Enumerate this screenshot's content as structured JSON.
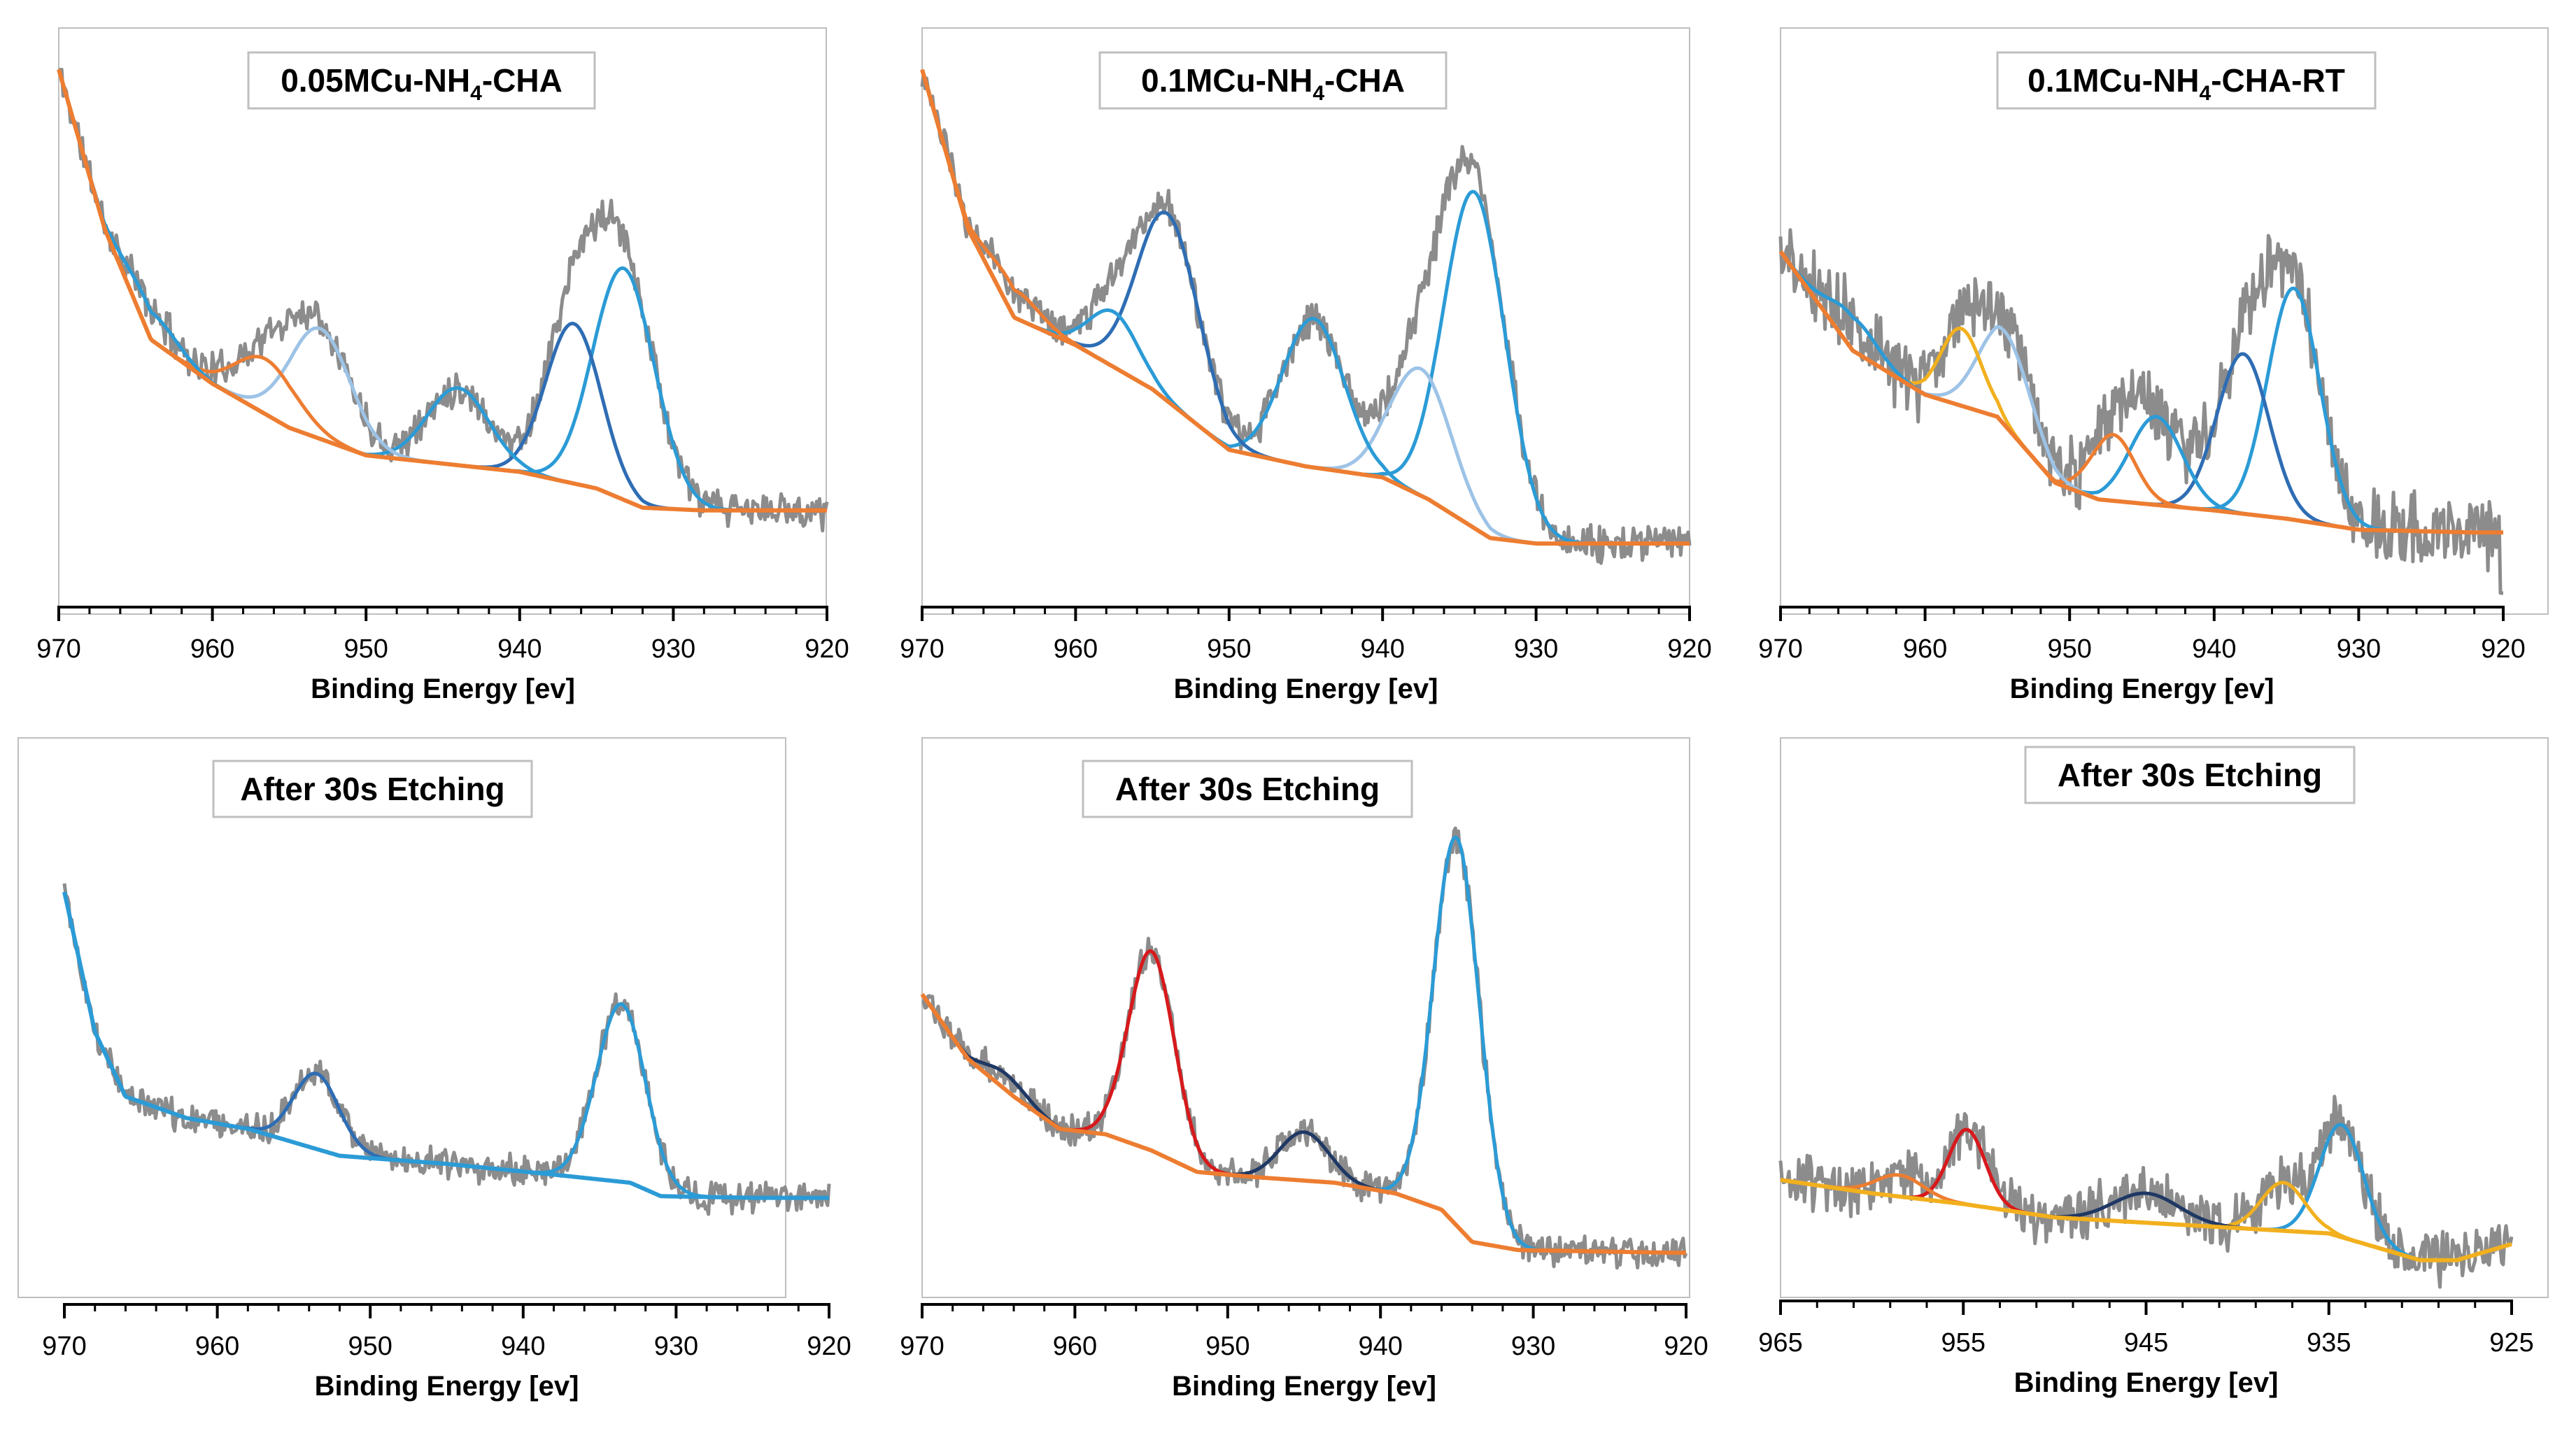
{
  "figure": {
    "xlabel": "Binding Energy [ev]",
    "colors": {
      "raw": "#8c8c8c",
      "background": "#ed7d31",
      "blue_dark": "#2e6db4",
      "blue_mid": "#2b9bd6",
      "blue_light": "#9dc3e6",
      "navy": "#1f3864",
      "orange": "#ed7d31",
      "yellow": "#f2b01e",
      "red": "#d7191c",
      "axis": "#000000",
      "frame": "#bfbfbf"
    }
  },
  "chart_data": [
    {
      "id": "p1",
      "type": "line",
      "title": "0.05MCu-NH4-CHA",
      "title_main": "0.05MCu-NH",
      "title_sub": "4",
      "title_tail": "-CHA",
      "xlabel": "Binding Energy [ev]",
      "xlim": [
        970,
        920
      ],
      "ticks": [
        970,
        960,
        950,
        940,
        930,
        920
      ],
      "ylim": [
        0,
        1
      ],
      "background": {
        "color": "background",
        "points": [
          [
            970,
            0.95
          ],
          [
            967,
            0.66
          ],
          [
            964,
            0.46
          ],
          [
            960,
            0.38
          ],
          [
            955,
            0.3
          ],
          [
            950,
            0.25
          ],
          [
            945,
            0.235
          ],
          [
            940,
            0.22
          ],
          [
            935,
            0.19
          ],
          [
            932,
            0.155
          ],
          [
            928,
            0.15
          ],
          [
            920,
            0.15
          ]
        ]
      },
      "peaks": [
        {
          "center": 933.2,
          "height": 0.42,
          "width": 2.0,
          "color": "blue_mid"
        },
        {
          "center": 936.5,
          "height": 0.29,
          "width": 1.8,
          "color": "blue_dark"
        },
        {
          "center": 944.0,
          "height": 0.14,
          "width": 2.0,
          "color": "blue_mid"
        },
        {
          "center": 953.0,
          "height": 0.2,
          "width": 2.0,
          "color": "blue_light"
        },
        {
          "center": 956.5,
          "height": 0.1,
          "width": 2.0,
          "color": "orange"
        },
        {
          "center": 964.0,
          "height": 0.05,
          "width": 1.6,
          "color": "blue_mid"
        }
      ],
      "envelope_color": "orange",
      "noise": 0.025,
      "seed": 11
    },
    {
      "id": "p2",
      "type": "line",
      "title": "0.1MCu-NH4-CHA",
      "title_main": "0.1MCu-NH",
      "title_sub": "4",
      "title_tail": "-CHA",
      "xlabel": "Binding Energy [ev]",
      "xlim": [
        970,
        920
      ],
      "ticks": [
        970,
        960,
        950,
        940,
        930,
        920
      ],
      "ylim": [
        0,
        1
      ],
      "background": {
        "color": "background",
        "points": [
          [
            970,
            0.95
          ],
          [
            967,
            0.66
          ],
          [
            964,
            0.5
          ],
          [
            960,
            0.45
          ],
          [
            955,
            0.37
          ],
          [
            950,
            0.26
          ],
          [
            945,
            0.23
          ],
          [
            940,
            0.21
          ],
          [
            937,
            0.17
          ],
          [
            933,
            0.1
          ],
          [
            930,
            0.09
          ],
          [
            920,
            0.09
          ]
        ]
      },
      "peaks": [
        {
          "center": 934.0,
          "height": 0.61,
          "width": 2.0,
          "color": "blue_mid"
        },
        {
          "center": 937.5,
          "height": 0.23,
          "width": 2.0,
          "color": "blue_light"
        },
        {
          "center": 944.5,
          "height": 0.27,
          "width": 2.0,
          "color": "blue_mid"
        },
        {
          "center": 954.0,
          "height": 0.34,
          "width": 2.0,
          "color": "blue_dark"
        },
        {
          "center": 957.5,
          "height": 0.1,
          "width": 1.6,
          "color": "blue_mid"
        },
        {
          "center": 964.0,
          "height": 0.05,
          "width": 1.6,
          "color": "orange"
        }
      ],
      "envelope_color": "orange",
      "noise": 0.025,
      "seed": 23
    },
    {
      "id": "p3",
      "type": "line",
      "title": "0.1MCu-NH4-CHA-RT",
      "title_main": "0.1MCu-NH",
      "title_sub": "4",
      "title_tail": "-CHA-RT",
      "xlabel": "Binding Energy [ev]",
      "xlim": [
        970,
        920
      ],
      "ticks": [
        970,
        960,
        950,
        940,
        930,
        920
      ],
      "ylim": [
        0,
        1
      ],
      "background": {
        "color": "background",
        "points": [
          [
            970,
            0.62
          ],
          [
            965,
            0.44
          ],
          [
            960,
            0.36
          ],
          [
            955,
            0.32
          ],
          [
            951,
            0.2
          ],
          [
            948,
            0.17
          ],
          [
            940,
            0.15
          ],
          [
            935,
            0.135
          ],
          [
            930,
            0.115
          ],
          [
            922,
            0.11
          ]
        ]
      },
      "peaks": [
        {
          "center": 934.5,
          "height": 0.42,
          "width": 1.8,
          "color": "blue_mid"
        },
        {
          "center": 938.0,
          "height": 0.29,
          "width": 1.8,
          "color": "blue_dark"
        },
        {
          "center": 944.0,
          "height": 0.16,
          "width": 1.8,
          "color": "blue_mid"
        },
        {
          "center": 947.0,
          "height": 0.12,
          "width": 1.5,
          "color": "orange"
        },
        {
          "center": 954.5,
          "height": 0.17,
          "width": 1.8,
          "color": "blue_light"
        },
        {
          "center": 957.5,
          "height": 0.14,
          "width": 1.4,
          "color": "yellow"
        },
        {
          "center": 965.0,
          "height": 0.06,
          "width": 1.6,
          "color": "blue_mid"
        }
      ],
      "envelope_color": "yellow",
      "noise": 0.05,
      "seed": 37,
      "end_drop": true
    },
    {
      "id": "p4",
      "type": "line",
      "title": "After 30s Etching",
      "xlabel": "Binding Energy [ev]",
      "xlim": [
        970,
        920
      ],
      "ticks": [
        970,
        960,
        950,
        940,
        930,
        920
      ],
      "ylim": [
        0,
        1
      ],
      "background": {
        "color": "blue_mid",
        "points": [
          [
            970,
            0.74
          ],
          [
            968,
            0.48
          ],
          [
            966,
            0.36
          ],
          [
            962,
            0.32
          ],
          [
            958,
            0.3
          ],
          [
            952,
            0.25
          ],
          [
            945,
            0.235
          ],
          [
            938,
            0.215
          ],
          [
            933,
            0.2
          ],
          [
            931,
            0.175
          ],
          [
            925,
            0.172
          ],
          [
            921,
            0.172
          ]
        ]
      },
      "peaks": [
        {
          "center": 933.6,
          "height": 0.33,
          "width": 1.6,
          "color": "blue_mid"
        },
        {
          "center": 953.5,
          "height": 0.14,
          "width": 1.5,
          "color": "blue_dark"
        }
      ],
      "envelope_color": "blue_mid",
      "noise": 0.022,
      "seed": 41
    },
    {
      "id": "p5",
      "type": "line",
      "title": "After 30s Etching",
      "xlabel": "Binding Energy [ev]",
      "xlim": [
        970,
        920
      ],
      "ticks": [
        970,
        960,
        950,
        940,
        930,
        920
      ],
      "ylim": [
        0,
        1
      ],
      "background": {
        "color": "background",
        "points": [
          [
            970,
            0.55
          ],
          [
            967,
            0.43
          ],
          [
            964,
            0.36
          ],
          [
            961,
            0.3
          ],
          [
            958,
            0.29
          ],
          [
            955,
            0.26
          ],
          [
            952,
            0.22
          ],
          [
            948,
            0.21
          ],
          [
            943,
            0.2
          ],
          [
            939,
            0.18
          ],
          [
            936,
            0.15
          ],
          [
            934,
            0.09
          ],
          [
            931,
            0.075
          ],
          [
            921,
            0.07
          ]
        ]
      },
      "peaks": [
        {
          "center": 935.0,
          "height": 0.72,
          "width": 1.5,
          "color": "blue_mid"
        },
        {
          "center": 945.0,
          "height": 0.09,
          "width": 1.6,
          "color": "navy"
        },
        {
          "center": 955.0,
          "height": 0.37,
          "width": 1.5,
          "color": "red"
        },
        {
          "center": 964.5,
          "height": 0.03,
          "width": 1.3,
          "color": "navy"
        }
      ],
      "envelope_color": "blue_mid",
      "noise": 0.022,
      "seed": 53
    },
    {
      "id": "p6",
      "type": "line",
      "title": "After 30s Etching",
      "xlabel": "Binding Energy [ev]",
      "xlim": [
        965,
        925
      ],
      "ticks": [
        965,
        955,
        945,
        935,
        925
      ],
      "ylim": [
        0,
        1
      ],
      "background": {
        "color": "yellow",
        "points": [
          [
            965,
            0.2
          ],
          [
            960,
            0.175
          ],
          [
            955,
            0.155
          ],
          [
            950,
            0.13
          ],
          [
            945,
            0.12
          ],
          [
            940,
            0.11
          ],
          [
            935,
            0.1
          ],
          [
            930,
            0.05
          ],
          [
            928,
            0.05
          ],
          [
            925,
            0.08
          ]
        ]
      },
      "peaks": [
        {
          "center": 934.3,
          "height": 0.21,
          "width": 1.2,
          "color": "blue_mid"
        },
        {
          "center": 937.5,
          "height": 0.09,
          "width": 1.2,
          "color": "yellow"
        },
        {
          "center": 945.0,
          "height": 0.055,
          "width": 1.8,
          "color": "navy"
        },
        {
          "center": 954.8,
          "height": 0.14,
          "width": 1.0,
          "color": "red"
        },
        {
          "center": 958.5,
          "height": 0.04,
          "width": 1.3,
          "color": "orange"
        }
      ],
      "envelope_color": "blue_mid",
      "noise": 0.04,
      "seed": 67
    }
  ]
}
